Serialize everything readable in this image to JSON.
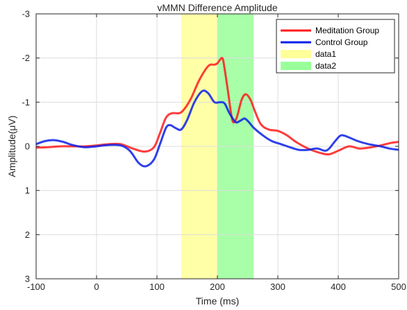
{
  "chart_data": {
    "type": "line",
    "title": "vMMN Difference Amplitude",
    "xlabel": "Time (ms)",
    "ylabel": "Amplitude(μV)",
    "xlim": [
      -100,
      500
    ],
    "ylim": [
      -3,
      3
    ],
    "y_reversed": true,
    "grid": true,
    "legend_position": "top-right",
    "x_ticks": [
      -100,
      0,
      100,
      200,
      300,
      400,
      500
    ],
    "y_ticks": [
      -3,
      -2,
      -1,
      0,
      1,
      2,
      3
    ],
    "shaded_regions": [
      {
        "name": "data1",
        "x_range": [
          140,
          200
        ],
        "color": "#ffff99"
      },
      {
        "name": "data2",
        "x_range": [
          200,
          260
        ],
        "color": "#99ff99"
      }
    ],
    "series": [
      {
        "name": "Meditation Group",
        "color": "#ff1a1a",
        "points": [
          [
            -100,
            0.03
          ],
          [
            -80,
            0.02
          ],
          [
            -60,
            0.0
          ],
          [
            -40,
            0.0
          ],
          [
            -20,
            0.0
          ],
          [
            0,
            -0.02
          ],
          [
            20,
            -0.05
          ],
          [
            40,
            -0.05
          ],
          [
            60,
            0.05
          ],
          [
            80,
            0.12
          ],
          [
            95,
            0.02
          ],
          [
            105,
            -0.3
          ],
          [
            115,
            -0.65
          ],
          [
            125,
            -0.75
          ],
          [
            140,
            -0.77
          ],
          [
            155,
            -1.05
          ],
          [
            170,
            -1.5
          ],
          [
            185,
            -1.82
          ],
          [
            195,
            -1.85
          ],
          [
            200,
            -1.88
          ],
          [
            208,
            -2.0
          ],
          [
            212,
            -1.75
          ],
          [
            218,
            -1.2
          ],
          [
            222,
            -0.8
          ],
          [
            226,
            -0.55
          ],
          [
            232,
            -0.65
          ],
          [
            240,
            -1.05
          ],
          [
            247,
            -1.18
          ],
          [
            255,
            -1.05
          ],
          [
            262,
            -0.8
          ],
          [
            272,
            -0.5
          ],
          [
            285,
            -0.38
          ],
          [
            300,
            -0.35
          ],
          [
            315,
            -0.25
          ],
          [
            330,
            -0.1
          ],
          [
            350,
            0.05
          ],
          [
            370,
            0.15
          ],
          [
            385,
            0.18
          ],
          [
            400,
            0.1
          ],
          [
            418,
            0.0
          ],
          [
            435,
            0.05
          ],
          [
            455,
            0.02
          ],
          [
            470,
            -0.02
          ],
          [
            488,
            -0.08
          ],
          [
            500,
            -0.1
          ]
        ]
      },
      {
        "name": "Control Group",
        "color": "#0a1ee8",
        "points": [
          [
            -100,
            -0.05
          ],
          [
            -85,
            -0.12
          ],
          [
            -70,
            -0.14
          ],
          [
            -55,
            -0.1
          ],
          [
            -40,
            -0.03
          ],
          [
            -20,
            0.02
          ],
          [
            0,
            0.0
          ],
          [
            20,
            -0.03
          ],
          [
            40,
            -0.02
          ],
          [
            55,
            0.1
          ],
          [
            70,
            0.38
          ],
          [
            82,
            0.45
          ],
          [
            95,
            0.3
          ],
          [
            105,
            -0.05
          ],
          [
            115,
            -0.42
          ],
          [
            122,
            -0.48
          ],
          [
            130,
            -0.42
          ],
          [
            140,
            -0.38
          ],
          [
            150,
            -0.6
          ],
          [
            162,
            -1.0
          ],
          [
            175,
            -1.25
          ],
          [
            185,
            -1.2
          ],
          [
            195,
            -1.0
          ],
          [
            205,
            -1.0
          ],
          [
            212,
            -0.97
          ],
          [
            220,
            -0.75
          ],
          [
            230,
            -0.55
          ],
          [
            238,
            -0.58
          ],
          [
            245,
            -0.63
          ],
          [
            252,
            -0.55
          ],
          [
            260,
            -0.42
          ],
          [
            275,
            -0.25
          ],
          [
            290,
            -0.12
          ],
          [
            305,
            -0.05
          ],
          [
            320,
            0.02
          ],
          [
            335,
            0.08
          ],
          [
            350,
            0.08
          ],
          [
            365,
            0.05
          ],
          [
            378,
            0.1
          ],
          [
            385,
            0.05
          ],
          [
            395,
            -0.12
          ],
          [
            405,
            -0.25
          ],
          [
            418,
            -0.2
          ],
          [
            432,
            -0.12
          ],
          [
            450,
            -0.05
          ],
          [
            470,
            0.0
          ],
          [
            485,
            0.05
          ],
          [
            500,
            0.08
          ]
        ]
      }
    ]
  }
}
